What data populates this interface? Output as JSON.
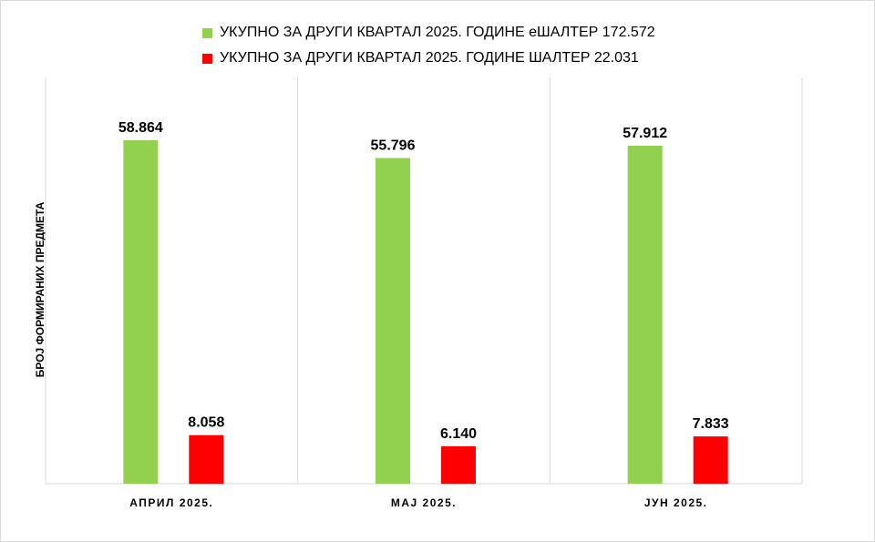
{
  "chart_data": {
    "type": "bar",
    "categories": [
      "АПРИЛ 2025.",
      "МАЈ 2025.",
      "ЈУН 2025."
    ],
    "series": [
      {
        "name": "УКУПНО ЗА ДРУГИ КВАРТАЛ 2025. ГОДИНЕ еШАЛТЕР 172.572",
        "color": "#92d050",
        "values": [
          58864,
          55796,
          57912
        ],
        "labels": [
          "58.864",
          "55.796",
          "57.912"
        ]
      },
      {
        "name": "УКУПНО ЗА ДРУГИ КВАРТАЛ 2025. ГОДИНЕ ШАЛТЕР 22.031",
        "color": "#ff0000",
        "values": [
          8058,
          6140,
          7833
        ],
        "labels": [
          "8.058",
          "6.140",
          "7.833"
        ]
      }
    ],
    "xlabel": "",
    "ylabel": "БРОЈ ФОРМИРАНИХ ПРЕДМЕТА",
    "ylim": [
      0,
      70000
    ],
    "grid": "vertical category separators",
    "legend": "top-center"
  }
}
